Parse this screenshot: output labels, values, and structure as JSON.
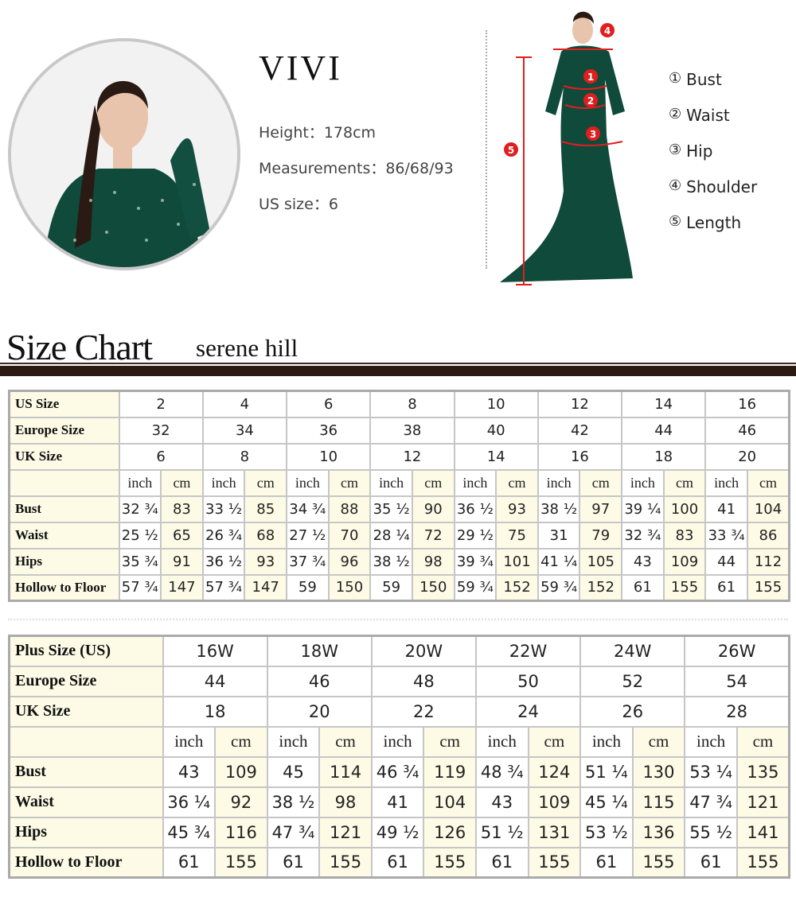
{
  "model": {
    "name": "VIVI",
    "height_label": "Height：",
    "height": "178cm",
    "measurements_label": "Measurements：",
    "measurements": "86/68/93",
    "us_size_label": "US size：",
    "us_size": "6"
  },
  "legend": [
    {
      "num": "①",
      "label": "Bust"
    },
    {
      "num": "②",
      "label": "Waist"
    },
    {
      "num": "③",
      "label": "Hip"
    },
    {
      "num": "④",
      "label": "Shoulder"
    },
    {
      "num": "⑤",
      "label": "Length"
    }
  ],
  "markers": [
    "1",
    "2",
    "3",
    "4",
    "5"
  ],
  "title": "Size Chart",
  "brand": "serene hill",
  "colors": {
    "dress": "#0f4a3a",
    "marker": "#e01e1e",
    "cell_shade": "#fdfbe6",
    "rule": "#2b1a12"
  },
  "standard": {
    "size_rows": [
      {
        "label": "US Size",
        "values": [
          "2",
          "4",
          "6",
          "8",
          "10",
          "12",
          "14",
          "16"
        ]
      },
      {
        "label": "Europe Size",
        "values": [
          "32",
          "34",
          "36",
          "38",
          "40",
          "42",
          "44",
          "46"
        ]
      },
      {
        "label": "UK Size",
        "values": [
          "6",
          "8",
          "10",
          "12",
          "14",
          "16",
          "18",
          "20"
        ]
      }
    ],
    "units": [
      "inch",
      "cm"
    ],
    "measure_rows": [
      {
        "label": "Bust",
        "values": [
          "32 ¾",
          "83",
          "33 ½",
          "85",
          "34 ¾",
          "88",
          "35 ½",
          "90",
          "36 ½",
          "93",
          "38 ½",
          "97",
          "39 ¼",
          "100",
          "41",
          "104"
        ]
      },
      {
        "label": "Waist",
        "values": [
          "25 ½",
          "65",
          "26 ¾",
          "68",
          "27 ½",
          "70",
          "28 ¼",
          "72",
          "29 ½",
          "75",
          "31",
          "79",
          "32 ¾",
          "83",
          "33 ¾",
          "86"
        ]
      },
      {
        "label": "Hips",
        "values": [
          "35 ¾",
          "91",
          "36 ½",
          "93",
          "37 ¾",
          "96",
          "38 ½",
          "98",
          "39 ¾",
          "101",
          "41 ¼",
          "105",
          "43",
          "109",
          "44",
          "112"
        ]
      },
      {
        "label": "Hollow to Floor",
        "values": [
          "57 ¾",
          "147",
          "57 ¾",
          "147",
          "59",
          "150",
          "59",
          "150",
          "59 ¾",
          "152",
          "59 ¾",
          "152",
          "61",
          "155",
          "61",
          "155"
        ]
      }
    ]
  },
  "plus": {
    "size_rows": [
      {
        "label": "Plus Size (US)",
        "values": [
          "16W",
          "18W",
          "20W",
          "22W",
          "24W",
          "26W"
        ]
      },
      {
        "label": "Europe Size",
        "values": [
          "44",
          "46",
          "48",
          "50",
          "52",
          "54"
        ]
      },
      {
        "label": "UK Size",
        "values": [
          "18",
          "20",
          "22",
          "24",
          "26",
          "28"
        ]
      }
    ],
    "units": [
      "inch",
      "cm"
    ],
    "measure_rows": [
      {
        "label": "Bust",
        "values": [
          "43",
          "109",
          "45",
          "114",
          "46 ¾",
          "119",
          "48 ¾",
          "124",
          "51 ¼",
          "130",
          "53 ¼",
          "135"
        ]
      },
      {
        "label": "Waist",
        "values": [
          "36 ¼",
          "92",
          "38 ½",
          "98",
          "41",
          "104",
          "43",
          "109",
          "45 ¼",
          "115",
          "47 ¾",
          "121"
        ]
      },
      {
        "label": "Hips",
        "values": [
          "45 ¾",
          "116",
          "47 ¾",
          "121",
          "49 ½",
          "126",
          "51 ½",
          "131",
          "53 ½",
          "136",
          "55 ½",
          "141"
        ]
      },
      {
        "label": "Hollow to Floor",
        "values": [
          "61",
          "155",
          "61",
          "155",
          "61",
          "155",
          "61",
          "155",
          "61",
          "155",
          "61",
          "155"
        ]
      }
    ]
  }
}
